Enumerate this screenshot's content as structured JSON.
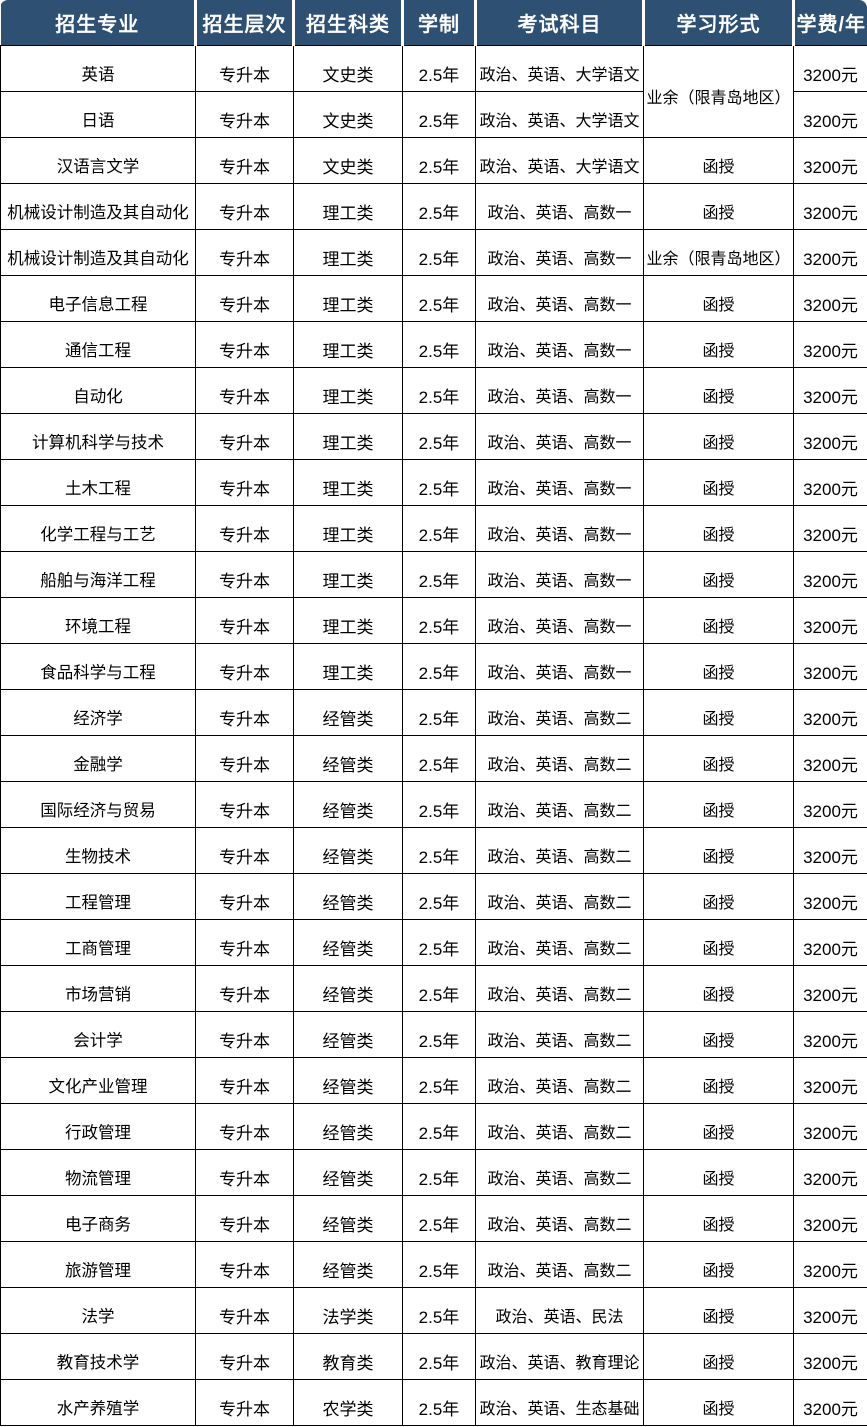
{
  "style": {
    "header_bg": "#2d5073",
    "header_text": "#ffffff",
    "body_bg": "#ffffff",
    "body_text": "#000000",
    "border_color": "#000000"
  },
  "chart_data": {
    "type": "table",
    "title": "",
    "columns": [
      "招生专业",
      "招生层次",
      "招生科类",
      "学制",
      "考试科目",
      "学习形式",
      "学费/年"
    ],
    "rows": [
      [
        "英语",
        "专升本",
        "文史类",
        "2.5年",
        "政治、英语、大学语文",
        "业余（限青岛地区）",
        "3200元"
      ],
      [
        "日语",
        "专升本",
        "文史类",
        "2.5年",
        "政治、英语、大学语文",
        null,
        "3200元"
      ],
      [
        "汉语言文学",
        "专升本",
        "文史类",
        "2.5年",
        "政治、英语、大学语文",
        "函授",
        "3200元"
      ],
      [
        "机械设计制造及其自动化",
        "专升本",
        "理工类",
        "2.5年",
        "政治、英语、高数一",
        "函授",
        "3200元"
      ],
      [
        "机械设计制造及其自动化",
        "专升本",
        "理工类",
        "2.5年",
        "政治、英语、高数一",
        "业余（限青岛地区）",
        "3200元"
      ],
      [
        "电子信息工程",
        "专升本",
        "理工类",
        "2.5年",
        "政治、英语、高数一",
        "函授",
        "3200元"
      ],
      [
        "通信工程",
        "专升本",
        "理工类",
        "2.5年",
        "政治、英语、高数一",
        "函授",
        "3200元"
      ],
      [
        "自动化",
        "专升本",
        "理工类",
        "2.5年",
        "政治、英语、高数一",
        "函授",
        "3200元"
      ],
      [
        "计算机科学与技术",
        "专升本",
        "理工类",
        "2.5年",
        "政治、英语、高数一",
        "函授",
        "3200元"
      ],
      [
        "土木工程",
        "专升本",
        "理工类",
        "2.5年",
        "政治、英语、高数一",
        "函授",
        "3200元"
      ],
      [
        "化学工程与工艺",
        "专升本",
        "理工类",
        "2.5年",
        "政治、英语、高数一",
        "函授",
        "3200元"
      ],
      [
        "船舶与海洋工程",
        "专升本",
        "理工类",
        "2.5年",
        "政治、英语、高数一",
        "函授",
        "3200元"
      ],
      [
        "环境工程",
        "专升本",
        "理工类",
        "2.5年",
        "政治、英语、高数一",
        "函授",
        "3200元"
      ],
      [
        "食品科学与工程",
        "专升本",
        "理工类",
        "2.5年",
        "政治、英语、高数一",
        "函授",
        "3200元"
      ],
      [
        "经济学",
        "专升本",
        "经管类",
        "2.5年",
        "政治、英语、高数二",
        "函授",
        "3200元"
      ],
      [
        "金融学",
        "专升本",
        "经管类",
        "2.5年",
        "政治、英语、高数二",
        "函授",
        "3200元"
      ],
      [
        "国际经济与贸易",
        "专升本",
        "经管类",
        "2.5年",
        "政治、英语、高数二",
        "函授",
        "3200元"
      ],
      [
        "生物技术",
        "专升本",
        "经管类",
        "2.5年",
        "政治、英语、高数二",
        "函授",
        "3200元"
      ],
      [
        "工程管理",
        "专升本",
        "经管类",
        "2.5年",
        "政治、英语、高数二",
        "函授",
        "3200元"
      ],
      [
        "工商管理",
        "专升本",
        "经管类",
        "2.5年",
        "政治、英语、高数二",
        "函授",
        "3200元"
      ],
      [
        "市场营销",
        "专升本",
        "经管类",
        "2.5年",
        "政治、英语、高数二",
        "函授",
        "3200元"
      ],
      [
        "会计学",
        "专升本",
        "经管类",
        "2.5年",
        "政治、英语、高数二",
        "函授",
        "3200元"
      ],
      [
        "文化产业管理",
        "专升本",
        "经管类",
        "2.5年",
        "政治、英语、高数二",
        "函授",
        "3200元"
      ],
      [
        "行政管理",
        "专升本",
        "经管类",
        "2.5年",
        "政治、英语、高数二",
        "函授",
        "3200元"
      ],
      [
        "物流管理",
        "专升本",
        "经管类",
        "2.5年",
        "政治、英语、高数二",
        "函授",
        "3200元"
      ],
      [
        "电子商务",
        "专升本",
        "经管类",
        "2.5年",
        "政治、英语、高数二",
        "函授",
        "3200元"
      ],
      [
        "旅游管理",
        "专升本",
        "经管类",
        "2.5年",
        "政治、英语、高数二",
        "函授",
        "3200元"
      ],
      [
        "法学",
        "专升本",
        "法学类",
        "2.5年",
        "政治、英语、民法",
        "函授",
        "3200元"
      ],
      [
        "教育技术学",
        "专升本",
        "教育类",
        "2.5年",
        "政治、英语、教育理论",
        "函授",
        "3200元"
      ],
      [
        "水产养殖学",
        "专升本",
        "农学类",
        "2.5年",
        "政治、英语、生态基础",
        "函授",
        "3200元"
      ]
    ],
    "merges": [
      {
        "row": 0,
        "col": 5,
        "rowspan": 2
      }
    ]
  }
}
